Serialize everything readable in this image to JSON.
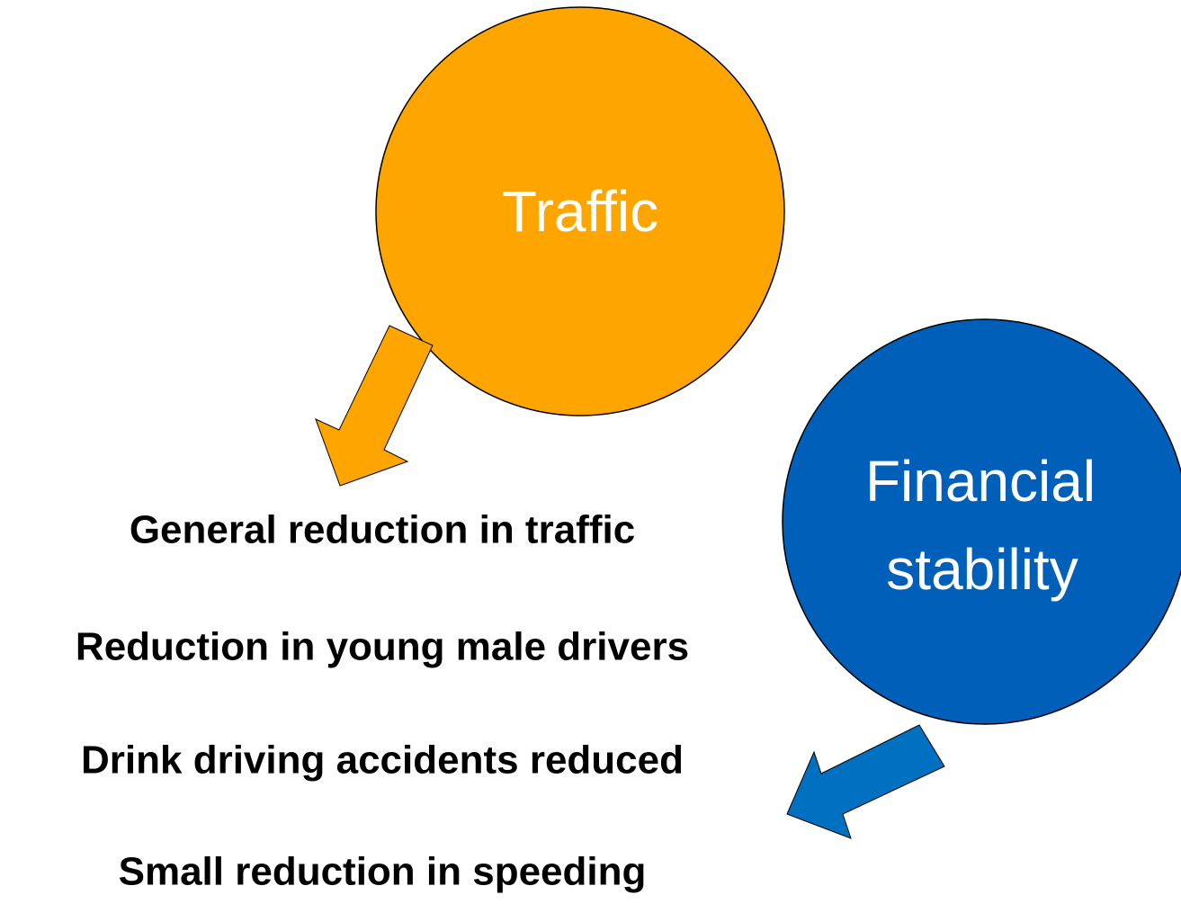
{
  "nodes": [
    {
      "lines": [
        "Traffic"
      ]
    },
    {
      "lines": [
        "Financial",
        "stability"
      ]
    }
  ],
  "items": [
    "General reduction in traffic",
    "Reduction in young male drivers",
    "Drink driving accidents reduced",
    "Small reduction in speeding"
  ]
}
